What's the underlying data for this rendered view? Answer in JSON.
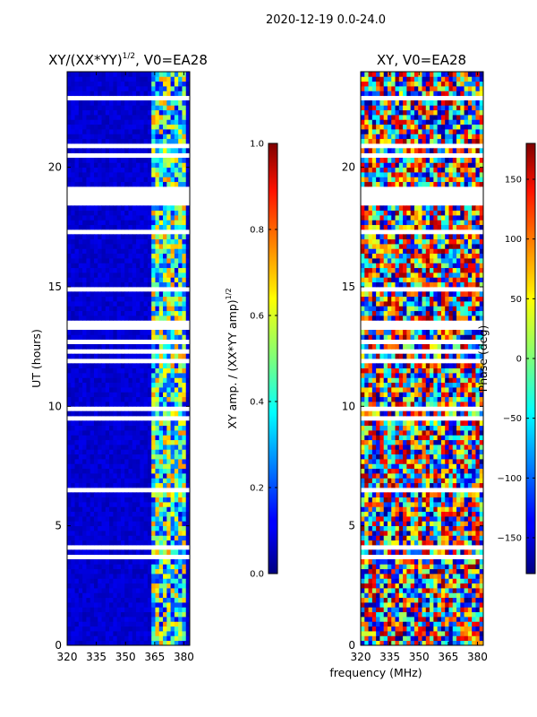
{
  "suptitle": "2020-12-19 0.0-24.0",
  "chart_data": [
    {
      "type": "heatmap",
      "title": "XY/(XX*YY)^{1/2}, V0=EA28",
      "title_main": "XY/(XX*YY)",
      "title_exp": "1/2",
      "title_tail": ", V0=EA28",
      "xlabel": "",
      "ylabel": "UT (hours)",
      "xlim": [
        320,
        383
      ],
      "ylim": [
        0,
        24
      ],
      "xticks": [
        "320",
        "335",
        "350",
        "365",
        "380"
      ],
      "xtick_values": [
        320,
        335,
        350,
        365,
        380
      ],
      "yticks": [
        "0",
        "5",
        "10",
        "15",
        "20"
      ],
      "ytick_values": [
        0,
        5,
        10,
        15,
        20
      ],
      "colormap": "jet",
      "colorbar": {
        "label": "XY amp. / (XX*YY amp)^{1/2}",
        "label_main": "XY amp. / (XX*YY amp)",
        "label_exp": "1/2",
        "range": [
          0.0,
          1.0
        ],
        "ticks": [
          "0.0",
          "0.2",
          "0.4",
          "0.6",
          "0.8",
          "1.0"
        ],
        "tick_values": [
          0.0,
          0.2,
          0.4,
          0.6,
          0.8,
          1.0
        ]
      },
      "background_value": 0.05,
      "bright_band_mhz": [
        364,
        381
      ],
      "band_values_range": [
        0.2,
        0.75
      ],
      "flagged_hours": [
        [
          18.5,
          19.2
        ],
        [
          13.2,
          13.5
        ],
        [
          3.6,
          3.75
        ]
      ]
    },
    {
      "type": "heatmap",
      "title": "XY, V0=EA28",
      "xlabel": "frequency (MHz)",
      "ylabel": "",
      "xlim": [
        320,
        383
      ],
      "ylim": [
        0,
        24
      ],
      "xticks": [
        "320",
        "335",
        "350",
        "365",
        "380"
      ],
      "xtick_values": [
        320,
        335,
        350,
        365,
        380
      ],
      "yticks": [
        "0",
        "5",
        "10",
        "15",
        "20"
      ],
      "ytick_values": [
        0,
        5,
        10,
        15,
        20
      ],
      "colormap": "jet",
      "colorbar": {
        "label": "Phase (deg)",
        "range": [
          -180,
          180
        ],
        "ticks": [
          "−150",
          "−100",
          "−50",
          "0",
          "50",
          "100",
          "150"
        ],
        "tick_values": [
          -150,
          -100,
          -50,
          0,
          50,
          100,
          150
        ]
      },
      "value_range_deg": [
        -180,
        180
      ],
      "flagged_hours": [
        [
          18.5,
          19.2
        ],
        [
          13.2,
          13.5
        ],
        [
          3.6,
          3.75
        ]
      ]
    }
  ]
}
